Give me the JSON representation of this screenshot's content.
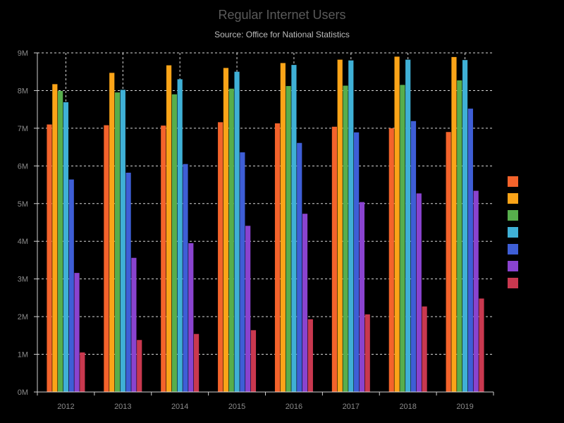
{
  "chart_data": {
    "type": "bar",
    "title": "Regular Internet Users",
    "subtitle": "Source: Office for National Statistics",
    "categories": [
      "2012",
      "2013",
      "2014",
      "2015",
      "2016",
      "2017",
      "2018",
      "2019"
    ],
    "ylim": [
      0,
      9000000
    ],
    "y_ticks": [
      0,
      1000000,
      2000000,
      3000000,
      4000000,
      5000000,
      6000000,
      7000000,
      8000000,
      9000000
    ],
    "y_tick_labels": [
      "0M",
      "1M",
      "2M",
      "3M",
      "4M",
      "5M",
      "6M",
      "7M",
      "8M",
      "9M"
    ],
    "grid": true,
    "legend_position": "right",
    "series": [
      {
        "name": "",
        "color": "#f4632b",
        "values": [
          7100000,
          7080000,
          7070000,
          7160000,
          7130000,
          7040000,
          7000000,
          6900000
        ]
      },
      {
        "name": "",
        "color": "#fba418",
        "values": [
          8170000,
          8470000,
          8670000,
          8600000,
          8730000,
          8820000,
          8900000,
          8890000
        ]
      },
      {
        "name": "",
        "color": "#57ae4c",
        "values": [
          7990000,
          7950000,
          7900000,
          8050000,
          8120000,
          8130000,
          8150000,
          8270000
        ]
      },
      {
        "name": "",
        "color": "#3fb0d6",
        "values": [
          7690000,
          8020000,
          8300000,
          8500000,
          8680000,
          8800000,
          8820000,
          8810000
        ]
      },
      {
        "name": "",
        "color": "#3e5ed6",
        "values": [
          5640000,
          5820000,
          6050000,
          6360000,
          6610000,
          6890000,
          7190000,
          7520000
        ]
      },
      {
        "name": "",
        "color": "#8a43cf",
        "values": [
          3160000,
          3560000,
          3950000,
          4410000,
          4730000,
          5040000,
          5270000,
          5340000
        ]
      },
      {
        "name": "",
        "color": "#c9384f",
        "values": [
          1050000,
          1380000,
          1540000,
          1640000,
          1930000,
          2060000,
          2270000,
          2480000
        ]
      }
    ]
  }
}
